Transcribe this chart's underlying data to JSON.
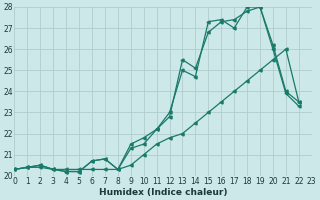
{
  "xlabel": "Humidex (Indice chaleur)",
  "background_color": "#cce8e8",
  "grid_color": "#b0cccc",
  "line_color": "#1a7a6a",
  "xlim": [
    0,
    23
  ],
  "ylim": [
    20,
    28
  ],
  "xticks": [
    0,
    1,
    2,
    3,
    4,
    5,
    6,
    7,
    8,
    9,
    10,
    11,
    12,
    13,
    14,
    15,
    16,
    17,
    18,
    19,
    20,
    21,
    22,
    23
  ],
  "yticks": [
    20,
    21,
    22,
    23,
    24,
    25,
    26,
    27,
    28
  ],
  "series": [
    [
      20.3,
      20.4,
      20.4,
      20.3,
      20.3,
      20.3,
      20.3,
      20.3,
      20.3,
      21.5,
      21.8,
      22.2,
      23.0,
      25.0,
      24.7,
      27.3,
      27.4,
      27.0,
      28.0,
      28.0,
      26.2,
      24.0,
      23.5
    ],
    [
      20.3,
      20.4,
      20.5,
      20.3,
      20.2,
      20.2,
      20.7,
      20.8,
      20.3,
      21.3,
      21.5,
      22.2,
      22.8,
      25.5,
      25.1,
      26.8,
      27.3,
      27.4,
      27.8,
      28.0,
      26.0,
      23.9,
      23.3
    ],
    [
      20.3,
      20.4,
      20.5,
      20.3,
      20.2,
      20.2,
      20.7,
      20.8,
      20.3,
      20.5,
      21.0,
      21.5,
      21.8,
      22.0,
      22.5,
      23.0,
      23.5,
      24.0,
      24.5,
      25.0,
      25.5,
      26.0,
      23.5
    ]
  ]
}
